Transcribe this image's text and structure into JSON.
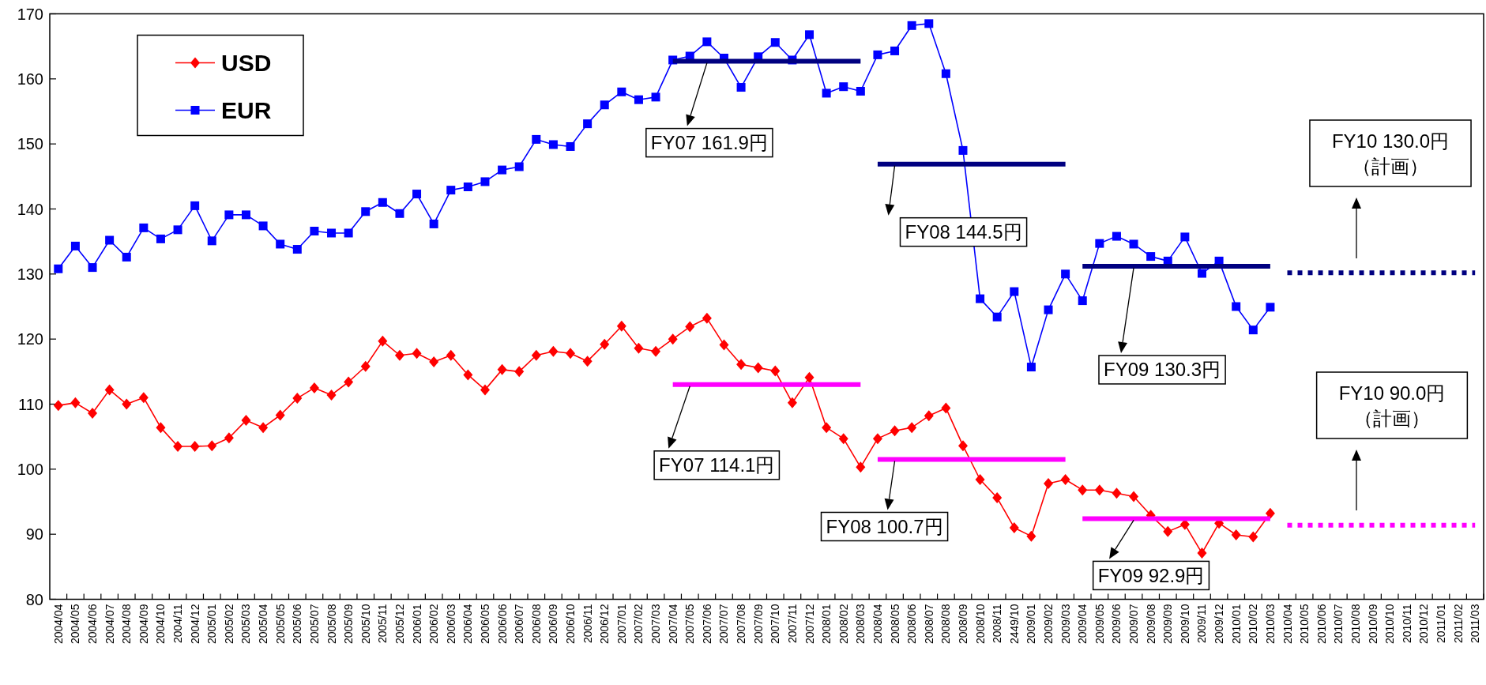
{
  "chart_data": {
    "type": "line",
    "categories": [
      "2004/04",
      "2004/05",
      "2004/06",
      "2004/07",
      "2004/08",
      "2004/09",
      "2004/10",
      "2004/11",
      "2004/12",
      "2005/01",
      "2005/02",
      "2005/03",
      "2005/04",
      "2005/05",
      "2005/06",
      "2005/07",
      "2005/08",
      "2005/09",
      "2005/10",
      "2005/11",
      "2005/12",
      "2006/01",
      "2006/02",
      "2006/03",
      "2006/04",
      "2006/05",
      "2006/06",
      "2006/07",
      "2006/08",
      "2006/09",
      "2006/10",
      "2006/11",
      "2006/12",
      "2007/01",
      "2007/02",
      "2007/03",
      "2007/04",
      "2007/05",
      "2007/06",
      "2007/07",
      "2007/08",
      "2007/09",
      "2007/10",
      "2007/11",
      "2007/12",
      "2008/01",
      "2008/02",
      "2008/03",
      "2008/04",
      "2008/05",
      "2008/06",
      "2008/07",
      "2008/08",
      "2008/09",
      "2008/10",
      "2008/11",
      "2449/10",
      "2009/01",
      "2009/02",
      "2009/03",
      "2009/04",
      "2009/05",
      "2009/06",
      "2009/07",
      "2009/08",
      "2009/09",
      "2009/10",
      "2009/11",
      "2009/12",
      "2010/01",
      "2010/02",
      "2010/03",
      "2010/04",
      "2010/05",
      "2010/06",
      "2010/07",
      "2010/08",
      "2010/09",
      "2010/10",
      "2010/11",
      "2010/12",
      "2011/01",
      "2011/02",
      "2011/03"
    ],
    "ylim": [
      80,
      170
    ],
    "yticks": [
      80,
      90,
      100,
      110,
      120,
      130,
      140,
      150,
      160,
      170
    ],
    "grid": false,
    "legend": "top left",
    "series": [
      {
        "name": "USD",
        "color": "#ff0000",
        "marker": "diamond",
        "values": [
          109.8,
          110.2,
          108.6,
          112.2,
          110.0,
          111.0,
          106.4,
          103.5,
          103.5,
          103.6,
          104.8,
          107.5,
          106.4,
          108.3,
          110.9,
          112.5,
          111.4,
          113.4,
          115.8,
          119.7,
          117.5,
          117.8,
          116.5,
          117.5,
          114.5,
          112.2,
          115.3,
          115.0,
          117.5,
          118.1,
          117.8,
          116.6,
          119.2,
          122.0,
          118.6,
          118.1,
          120.0,
          121.9,
          123.2,
          119.1,
          116.1,
          115.6,
          115.1,
          110.2,
          114.1,
          106.4,
          104.7,
          100.3,
          104.7,
          105.9,
          106.4,
          108.2,
          109.4,
          103.6,
          98.4,
          95.6,
          91.0,
          89.7,
          97.8,
          98.4,
          96.8,
          96.8,
          96.3,
          95.8,
          92.9,
          90.4,
          91.5,
          87.1,
          91.7,
          89.9,
          89.6,
          93.2,
          null,
          null,
          null,
          null,
          null,
          null,
          null,
          null,
          null,
          null,
          null,
          null
        ]
      },
      {
        "name": "EUR",
        "color": "#0000ff",
        "marker": "square",
        "values": [
          130.8,
          134.3,
          131.0,
          135.2,
          132.6,
          137.1,
          135.4,
          136.8,
          140.5,
          135.1,
          139.1,
          139.1,
          137.4,
          134.6,
          133.8,
          136.6,
          136.3,
          136.3,
          139.6,
          141.0,
          139.3,
          142.3,
          137.7,
          142.9,
          143.4,
          144.2,
          146.0,
          146.5,
          150.7,
          149.9,
          149.6,
          153.1,
          156.0,
          158.0,
          156.8,
          157.2,
          162.9,
          163.5,
          165.7,
          163.2,
          158.7,
          163.4,
          165.6,
          162.9,
          166.8,
          157.8,
          158.8,
          158.1,
          163.7,
          164.3,
          168.2,
          168.5,
          160.8,
          149.0,
          126.2,
          123.4,
          127.3,
          115.7,
          124.5,
          130.0,
          125.9,
          134.7,
          135.8,
          134.6,
          132.7,
          132.0,
          135.7,
          130.1,
          132.0,
          125.0,
          121.4,
          124.9,
          null,
          null,
          null,
          null,
          null,
          null,
          null,
          null,
          null,
          null,
          null,
          null
        ]
      },
      {
        "color": "#000080",
        "marker": "none",
        "x": [
          "2007/04",
          "2008/03"
        ],
        "values": [
          162.7,
          162.7
        ]
      },
      {
        "color": "#000080",
        "marker": "none",
        "x": [
          "2008/04",
          "2009/03"
        ],
        "values": [
          146.9,
          146.9
        ]
      },
      {
        "color": "#000080",
        "marker": "none",
        "x": [
          "2009/04",
          "2010/03"
        ],
        "values": [
          131.2,
          131.2
        ]
      },
      {
        "color": "#000080",
        "marker": "none",
        "line_style": "dotted",
        "x": [
          "2010/04",
          "2011/03"
        ],
        "values": [
          130.2,
          130.2
        ]
      },
      {
        "color": "#ff00ff",
        "marker": "none",
        "x": [
          "2007/04",
          "2008/03"
        ],
        "values": [
          113.0,
          113.0
        ]
      },
      {
        "color": "#ff00ff",
        "marker": "none",
        "x": [
          "2008/04",
          "2009/03"
        ],
        "values": [
          101.5,
          101.5
        ]
      },
      {
        "color": "#ff00ff",
        "marker": "none",
        "x": [
          "2009/04",
          "2010/03"
        ],
        "values": [
          92.4,
          92.4
        ]
      },
      {
        "color": "#ff00ff",
        "marker": "none",
        "line_style": "dotted",
        "x": [
          "2010/04",
          "2011/03"
        ],
        "values": [
          91.4,
          91.4
        ]
      }
    ],
    "annotations": [
      {
        "text": "FY07 161.9円",
        "x": "2007/06",
        "y": 162.7
      },
      {
        "text": "FY08 144.5円",
        "x": "2008/05",
        "y": 146.9
      },
      {
        "text": "FY09 130.3円",
        "x": "2009/07",
        "y": 131.2
      },
      {
        "text": "FY07 114.1円",
        "x": "2007/05",
        "y": 113.0
      },
      {
        "text": "FY08 100.7円",
        "x": "2008/05",
        "y": 101.5
      },
      {
        "text": "FY09 92.9円",
        "x": "2009/07",
        "y": 92.4
      },
      "FY10 130.0円",
      "（計画）",
      "FY10 90.0円",
      "（計画）"
    ]
  }
}
